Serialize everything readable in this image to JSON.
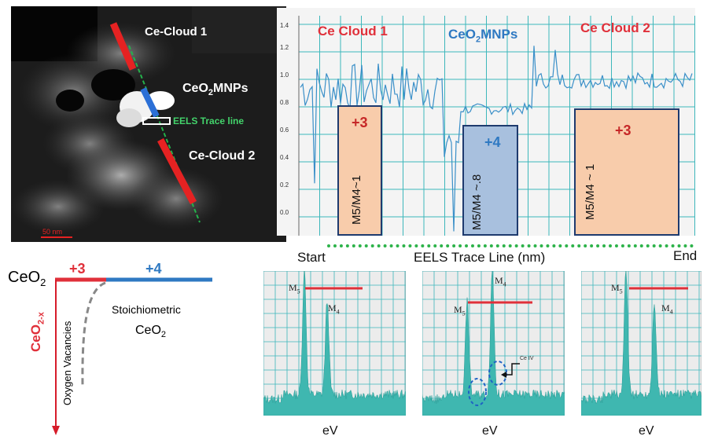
{
  "micrograph": {
    "labels": {
      "cloud1": "Ce-Cloud 1",
      "mnps": "CeO",
      "mnps_sub": "2",
      "mnps_tail": "MNPs",
      "trace": "EELS Trace line",
      "cloud2": "Ce-Cloud 2"
    },
    "scale_bar": "50 nm"
  },
  "trace_chart": {
    "yticks": [
      "1.4",
      "1.2",
      "1.0",
      "0.8",
      "0.6",
      "0.4",
      "0.2",
      "0.0"
    ],
    "regions": [
      {
        "name": "Ce Cloud 1",
        "oxidation": "+3",
        "ratio": "M5/M4~1"
      },
      {
        "name_main": "CeO",
        "name_sub": "2",
        "name_tail": "MNPs",
        "oxidation": "+4",
        "ratio": "M5/M4 ~.8"
      },
      {
        "name": "Ce Cloud 2",
        "oxidation": "+3",
        "ratio": "M5/M4 ~ 1"
      }
    ],
    "colors": {
      "cloud": "#e0303a",
      "mnps": "#2f79c2",
      "line": "#3a8fc8",
      "grid": "#3db7bb"
    },
    "axis": {
      "start": "Start",
      "label": "EELS Trace Line  (nm)",
      "end": "End"
    }
  },
  "schematic": {
    "formula_main": "CeO",
    "formula_sub": "2",
    "ox3": "+3",
    "ox4": "+4",
    "vacancy_main": "CeO",
    "vacancy_sub": "2-x",
    "vacancy_label": "Oxygen Vacancies",
    "stoich_line1": "Stoichiometric",
    "stoich_main": "CeO",
    "stoich_sub": "2",
    "colors": {
      "ox3": "#e0303a",
      "ox4": "#2f79c2"
    }
  },
  "spectra": [
    {
      "m5": "M",
      "m5_sub": "5",
      "m4": "M",
      "m4_sub": "4",
      "xlabel": "eV"
    },
    {
      "m5": "M",
      "m5_sub": "5",
      "m4": "M",
      "m4_sub": "4",
      "xlabel": "eV",
      "annotation": "Ce IV"
    },
    {
      "m5": "M",
      "m5_sub": "5",
      "m4": "M",
      "m4_sub": "4",
      "xlabel": "eV"
    }
  ]
}
